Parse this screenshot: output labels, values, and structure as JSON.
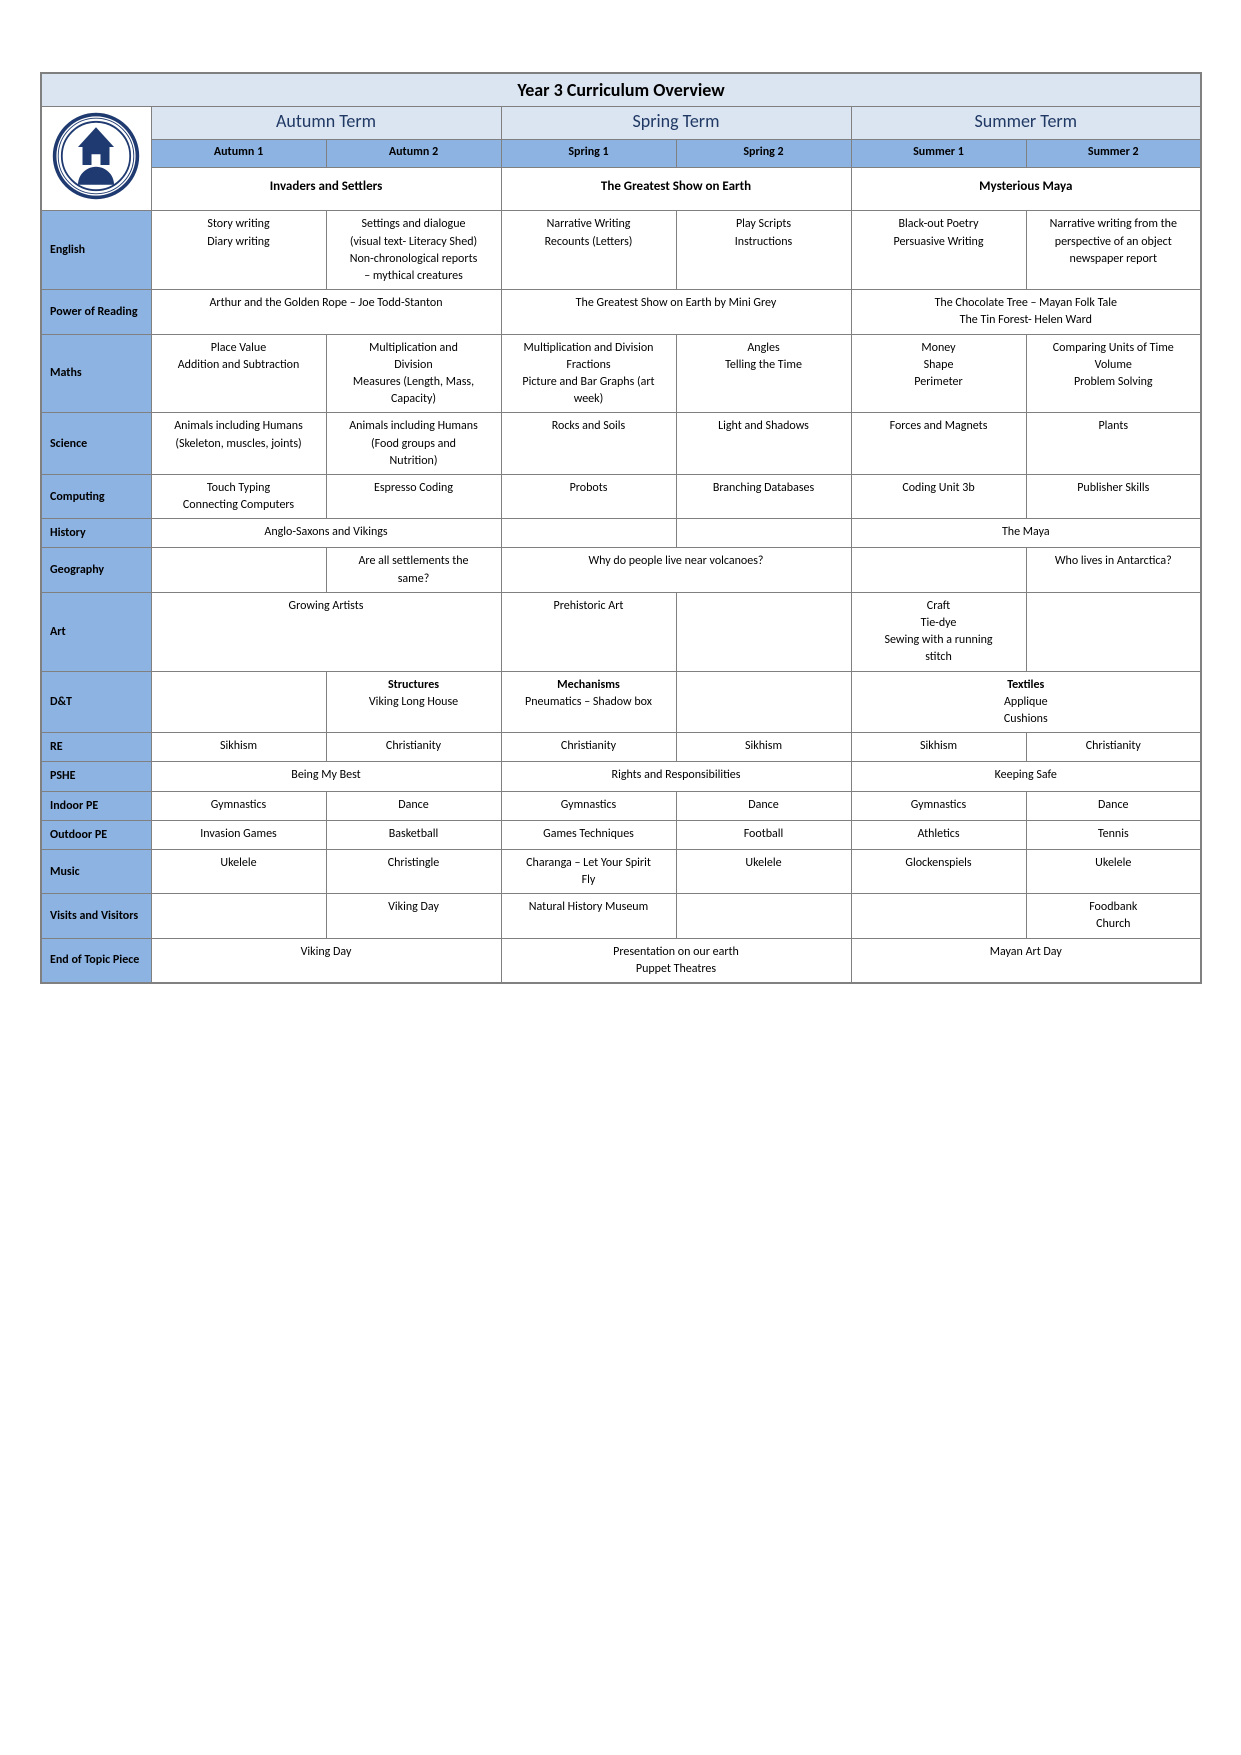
{
  "title": "Year 3 Curriculum Overview",
  "terms": {
    "autumn": {
      "label": "Autumn Term",
      "sub1": "Autumn 1",
      "sub2": "Autumn 2",
      "theme": "Invaders and Settlers"
    },
    "spring": {
      "label": "Spring Term",
      "sub1": "Spring 1",
      "sub2": "Spring 2",
      "theme": "The Greatest Show on Earth"
    },
    "summer": {
      "label": "Summer Term",
      "sub1": "Summer 1",
      "sub2": "Summer 2",
      "theme": "Mysterious Maya"
    }
  },
  "colors": {
    "header_bg": "#dbe5f1",
    "subheader_bg": "#8db3e2",
    "border": "#808080",
    "text": "#000000",
    "term_text": "#1f3864"
  },
  "subjects": [
    {
      "name": "English",
      "span": "none",
      "a1": "Story writing\nDiary writing",
      "a2": "Settings and dialogue\n(visual text- Literacy Shed)\nNon-chronological reports\n– mythical creatures",
      "s1": "Narrative Writing\nRecounts (Letters)",
      "s2": "Play Scripts\nInstructions",
      "u1": "Black-out Poetry\nPersuasive Writing",
      "u2": "Narrative writing from the\nperspective of an object\nnewspaper report"
    },
    {
      "name": "Power of Reading",
      "span": "merge2",
      "a": "Arthur and the Golden Rope – Joe Todd-Stanton",
      "s": "The Greatest Show on Earth by Mini Grey",
      "u": "The Chocolate Tree – Mayan Folk Tale\nThe Tin Forest- Helen Ward"
    },
    {
      "name": "Maths",
      "span": "none",
      "a1": "Place Value\nAddition and Subtraction",
      "a2": "Multiplication and\nDivision\nMeasures (Length, Mass,\nCapacity)",
      "s1": "Multiplication and Division\nFractions\nPicture and Bar Graphs (art\nweek)",
      "s2": "Angles\nTelling the Time",
      "u1": "Money\nShape\nPerimeter",
      "u2": "Comparing Units of Time\nVolume\nProblem Solving"
    },
    {
      "name": "Science",
      "span": "none",
      "a1": "Animals including Humans\n(Skeleton, muscles, joints)",
      "a2": "Animals including Humans\n(Food groups and\nNutrition)",
      "s1": "Rocks and Soils",
      "s2": "Light and Shadows",
      "u1": "Forces and Magnets",
      "u2": "Plants"
    },
    {
      "name": "Computing",
      "span": "none",
      "a1": "Touch Typing\nConnecting Computers",
      "a2": "Espresso Coding",
      "s1": "Probots",
      "s2": "Branching Databases",
      "u1": "Coding Unit 3b",
      "u2": "Publisher Skills"
    },
    {
      "name": "History",
      "span": "custom",
      "a": "Anglo-Saxons and Vikings",
      "s1": "",
      "s2": "",
      "u": "The Maya"
    },
    {
      "name": "Geography",
      "span": "custom2",
      "a1": "",
      "a2": "Are all settlements the\nsame?",
      "s": "Why do people live near volcanoes?",
      "u1": "",
      "u2": "Who lives in Antarctica?"
    },
    {
      "name": "Art",
      "span": "custom3",
      "a": "Growing Artists",
      "s1": "Prehistoric Art",
      "s2": "",
      "u1": "Craft\nTie-dye\nSewing with a running\nstitch",
      "u2": ""
    },
    {
      "name": "D&T",
      "span": "custom4",
      "a1": "",
      "a2_t": "Structures",
      "a2_b": "Viking Long House",
      "s1_t": "Mechanisms",
      "s1_b": "Pneumatics – Shadow box",
      "s2": "",
      "u_t": "Textiles",
      "u_b": "Applique\nCushions"
    },
    {
      "name": "RE",
      "span": "none",
      "a1": "Sikhism",
      "a2": "Christianity",
      "s1": "Christianity",
      "s2": "Sikhism",
      "u1": "Sikhism",
      "u2": "Christianity"
    },
    {
      "name": "PSHE",
      "span": "merge2",
      "a": "Being My Best",
      "s": "Rights and Responsibilities",
      "u": "Keeping Safe"
    },
    {
      "name": "Indoor PE",
      "span": "none",
      "a1": "Gymnastics",
      "a2": "Dance",
      "s1": "Gymnastics",
      "s2": "Dance",
      "u1": "Gymnastics",
      "u2": "Dance"
    },
    {
      "name": "Outdoor PE",
      "span": "none",
      "a1": "Invasion Games",
      "a2": "Basketball",
      "s1": "Games Techniques",
      "s2": "Football",
      "u1": "Athletics",
      "u2": "Tennis"
    },
    {
      "name": "Music",
      "span": "none",
      "a1": "Ukelele",
      "a2": "Christingle",
      "s1": "Charanga – Let Your Spirit\nFly",
      "s2": "Ukelele",
      "u1": "Glockenspiels",
      "u2": "Ukelele"
    },
    {
      "name": "Visits and Visitors",
      "span": "none",
      "a1": "",
      "a2": "Viking Day",
      "s1": "Natural History Museum",
      "s2": "",
      "u1": "",
      "u2": "Foodbank\nChurch"
    },
    {
      "name": "End of Topic Piece",
      "span": "merge2",
      "a": "Viking Day",
      "s": "Presentation on our earth\nPuppet Theatres",
      "u": "Mayan Art Day"
    }
  ],
  "layout": {
    "col_widths": [
      "110px",
      "175px",
      "175px",
      "175px",
      "175px",
      "175px",
      "175px"
    ],
    "font_family": "Calibri, Arial, sans-serif",
    "title_fontsize": 18,
    "term_fontsize": 18,
    "sub_fontsize": 12,
    "cell_fontsize": 12
  }
}
